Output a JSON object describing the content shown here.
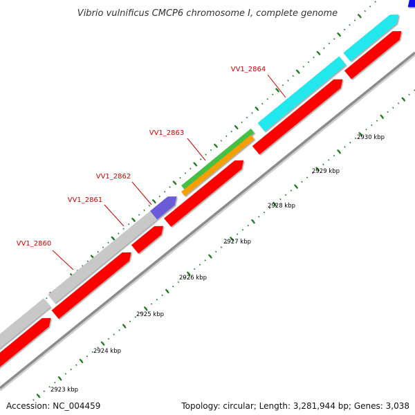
{
  "title": "Vibrio vulnificus CMCP6 chromosome I, complete genome",
  "footer": {
    "accession": "Accession: NC_004459",
    "summary": "Topology: circular; Length: 3,281,944 bp; Genes: 3,038"
  },
  "colors": {
    "backbone": "#8c8c8c",
    "cds_red": "#ff0000",
    "gene_grey": "#c8c8c8",
    "gene_purple": "#6b5bd8",
    "gene_green": "#44c044",
    "gene_orange": "#f5a000",
    "gene_cyan": "#22e8ee",
    "gene_blue": "#1010ee",
    "tick": "#1e7a1e",
    "gene_label": "#cc0000"
  },
  "kbp_labels": [
    "2923 kbp",
    "2924 kbp",
    "2925 kbp",
    "2926 kbp",
    "2927 kbp",
    "2928 kbp",
    "2929 kbp",
    "2930 kbp"
  ],
  "gene_labels": [
    "VV1_2860",
    "VV1_2861",
    "VV1_2862",
    "VV1_2863",
    "VV1_2864"
  ]
}
